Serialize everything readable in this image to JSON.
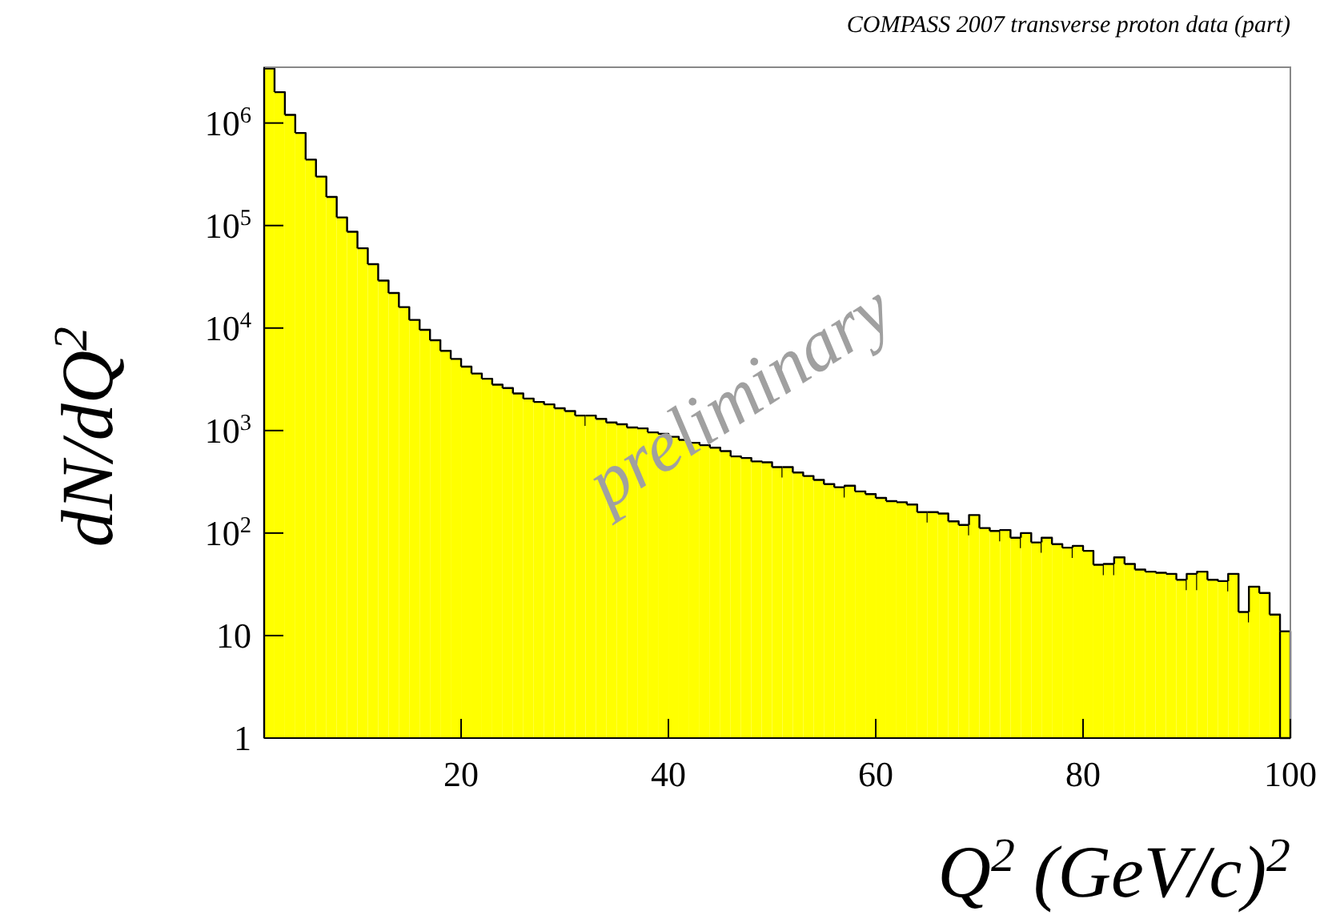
{
  "chart_data": {
    "type": "histogram",
    "title": "COMPASS 2007 transverse proton data (part)",
    "xlabel": "Q$^{2}$ (GeV/c)$^{2}$",
    "ylabel": "dN/dQ$^{2}$",
    "annotations": [
      "preliminary"
    ],
    "bins": [
      1,
      2,
      3,
      4,
      5,
      6,
      7,
      8,
      9,
      10,
      11,
      12,
      13,
      14,
      15,
      16,
      17,
      18,
      19,
      20,
      21,
      22,
      23,
      24,
      25,
      26,
      27,
      28,
      29,
      30,
      31,
      32,
      33,
      34,
      35,
      36,
      37,
      38,
      39,
      40,
      41,
      42,
      43,
      44,
      45,
      46,
      47,
      48,
      49,
      50,
      51,
      52,
      53,
      54,
      55,
      56,
      57,
      58,
      59,
      60,
      61,
      62,
      63,
      64,
      65,
      66,
      67,
      68,
      69,
      70,
      71,
      72,
      73,
      74,
      75,
      76,
      77,
      78,
      79,
      80,
      81,
      82,
      83,
      84,
      85,
      86,
      87,
      88,
      89,
      90,
      91,
      92,
      93,
      94,
      95,
      96,
      97,
      98,
      99,
      100
    ],
    "values": [
      3400000,
      2000000,
      1200000,
      800000,
      440000,
      300000,
      190000,
      120000,
      87000,
      60000,
      42000,
      29000,
      22000,
      16000,
      12000,
      9600,
      7600,
      6000,
      5000,
      4200,
      3600,
      3200,
      2800,
      2600,
      2300,
      2050,
      1900,
      1800,
      1650,
      1550,
      1400,
      1400,
      1300,
      1200,
      1150,
      1070,
      1050,
      960,
      930,
      870,
      810,
      760,
      720,
      680,
      630,
      560,
      540,
      500,
      490,
      440,
      440,
      390,
      360,
      330,
      300,
      280,
      290,
      255,
      240,
      220,
      205,
      200,
      190,
      160,
      160,
      155,
      130,
      120,
      150,
      112,
      105,
      107,
      90,
      100,
      81,
      90,
      78,
      72,
      75,
      67,
      49,
      50,
      58,
      50,
      44,
      42,
      41,
      40,
      35,
      40,
      42,
      35,
      34,
      40,
      17,
      30,
      26,
      16,
      11
    ],
    "color": "#ffff00",
    "log": "y",
    "xlim": [
      1,
      100
    ],
    "xticks": [
      20,
      40,
      60,
      80,
      100
    ],
    "ylim": [
      1,
      3500000
    ],
    "yticks": [
      1,
      10,
      {
        "value": 100,
        "label": "10$^{2}$"
      },
      {
        "value": 1000,
        "label": "10$^{3}$"
      },
      {
        "value": 10000,
        "label": "10$^{4}$"
      },
      {
        "value": 100000,
        "label": "10$^{5}$"
      },
      {
        "value": 1000000,
        "label": "10$^{6}$"
      }
    ],
    "grid": false,
    "legend": false
  }
}
